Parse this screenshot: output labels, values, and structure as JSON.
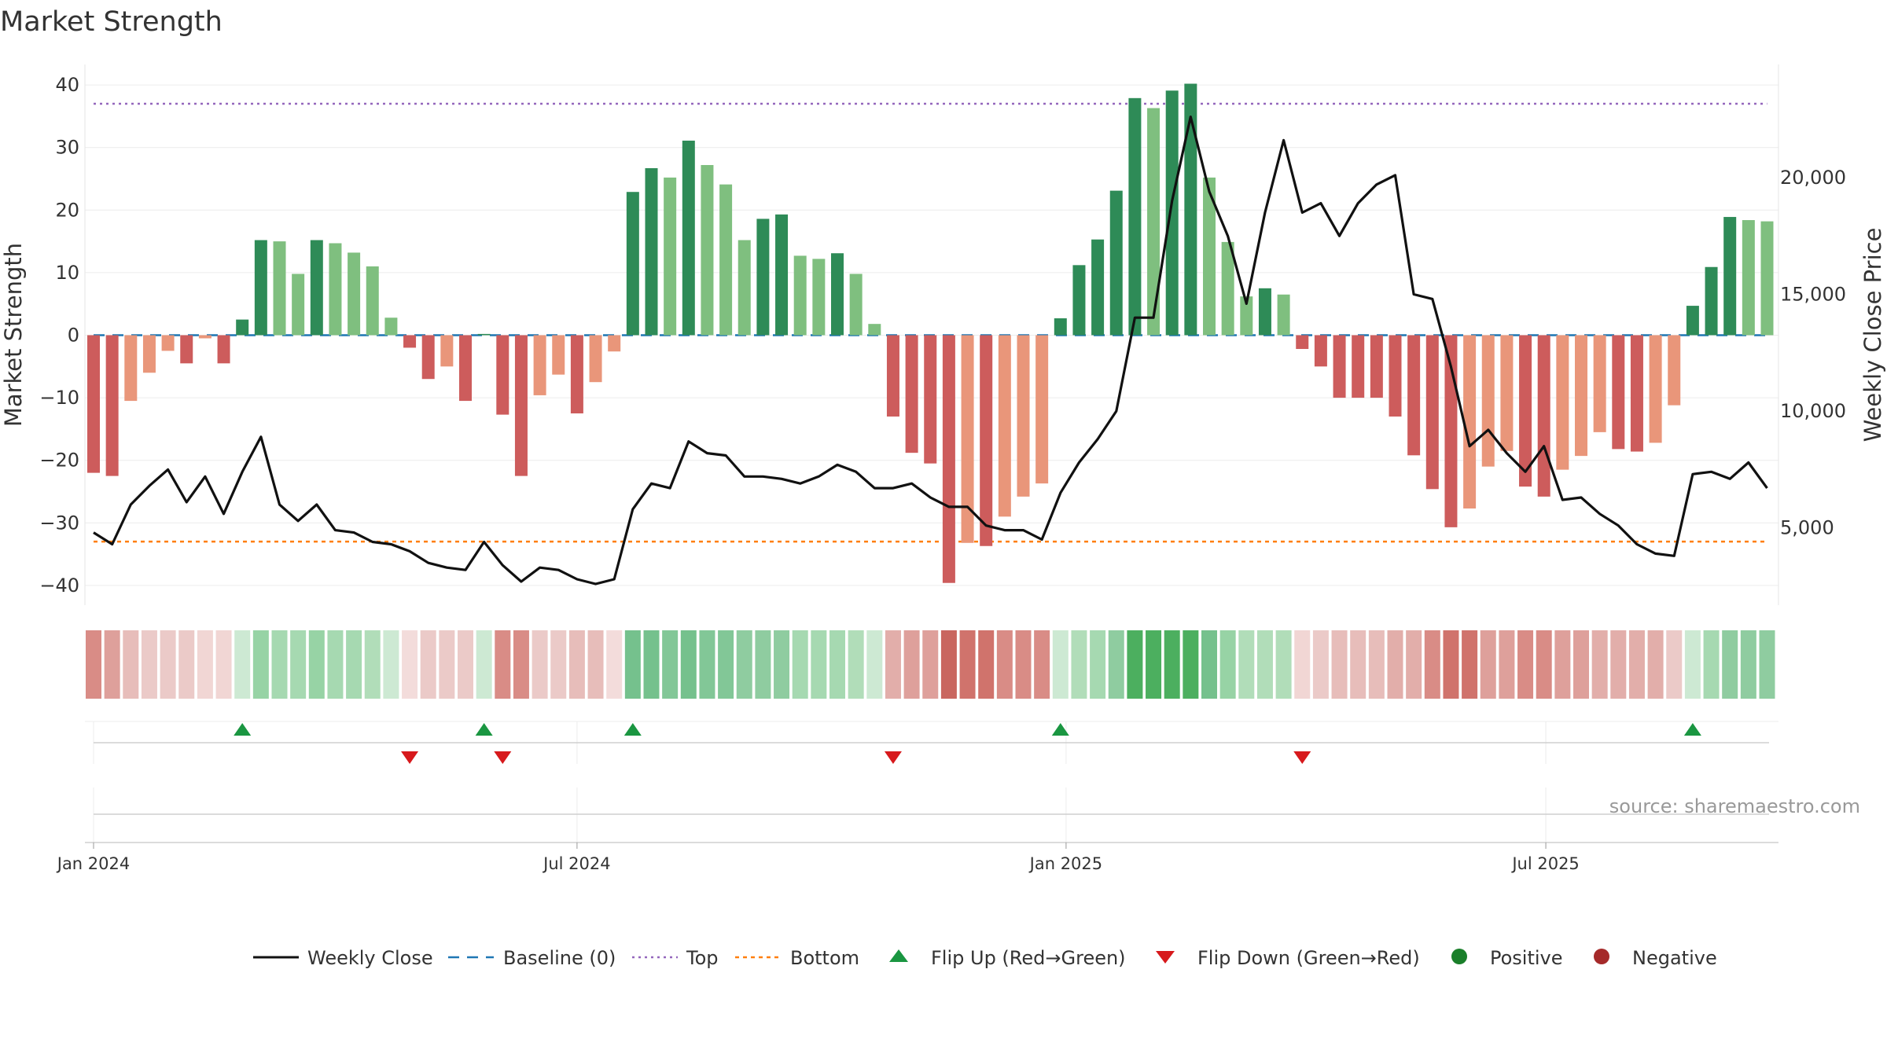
{
  "chart_data": {
    "type": "bar+line",
    "title": "Market Strength",
    "ylabel_left": "Market Strength",
    "ylabel_right": "Weekly Close Price",
    "yticks_left": [
      40,
      30,
      20,
      10,
      0,
      -10,
      -20,
      -30,
      -40
    ],
    "yticks_left_labels": [
      "40",
      "30",
      "20",
      "10",
      "0",
      "−10",
      "−20",
      "−30",
      "−40"
    ],
    "yticks_right": [
      20000,
      15000,
      10000,
      5000
    ],
    "yticks_right_labels": [
      "20,000",
      "15,000",
      "10,000",
      "5,000"
    ],
    "ylim_left": [
      -42,
      42
    ],
    "ylim_right": [
      2000,
      24500
    ],
    "top_line": 37,
    "bottom_line": -33,
    "baseline": 0,
    "x_tick_labels": [
      "Jan 2024",
      "Jul 2024",
      "Jan 2025",
      "Jul 2025"
    ],
    "x_tick_weeks": [
      0,
      26,
      52.3,
      78.1
    ],
    "strength": [
      -22,
      -22.5,
      -10.5,
      -6,
      -2.5,
      -4.5,
      -0.5,
      -4.5,
      2.5,
      15.2,
      15,
      9.8,
      15.2,
      14.7,
      13.2,
      11,
      2.8,
      -2,
      -7,
      -5,
      -10.5,
      0.2,
      -12.7,
      -22.5,
      -9.6,
      -6.3,
      -12.5,
      -7.5,
      -2.6,
      22.9,
      26.7,
      25.2,
      31.1,
      27.2,
      24.1,
      15.2,
      18.6,
      19.3,
      12.7,
      12.2,
      13.1,
      9.8,
      1.8,
      -13,
      -18.8,
      -20.5,
      -39.6,
      -33.2,
      -33.7,
      -29,
      -25.8,
      -23.7,
      2.7,
      11.2,
      15.3,
      23.1,
      37.9,
      36.3,
      39.1,
      40.2,
      25.2,
      14.9,
      6.2,
      7.5,
      6.5,
      -2.2,
      -5,
      -10,
      -10,
      -10,
      -13,
      -19.2,
      -24.6,
      -30.7,
      -27.7,
      -21,
      -18.5,
      -24.2,
      -25.8,
      -21.5,
      -19.3,
      -15.5,
      -18.2,
      -18.6,
      -17.2,
      -11.2,
      4.7,
      10.9,
      18.9,
      18.4,
      18.2
    ],
    "weekly_close": [
      4800,
      4300,
      6000,
      6800,
      7500,
      6100,
      7200,
      5600,
      7400,
      8900,
      6000,
      5300,
      6000,
      4900,
      4800,
      4400,
      4300,
      4000,
      3500,
      3300,
      3200,
      4400,
      3400,
      2700,
      3300,
      3200,
      2800,
      2600,
      2800,
      5800,
      6900,
      6700,
      8700,
      8200,
      8100,
      7200,
      7200,
      7100,
      6900,
      7200,
      7700,
      7400,
      6700,
      6700,
      6900,
      6300,
      5900,
      5900,
      5100,
      4900,
      4900,
      4500,
      6500,
      7800,
      8800,
      10000,
      14000,
      14000,
      19000,
      22600,
      19400,
      17500,
      14600,
      18500,
      21600,
      18500,
      18900,
      17500,
      18900,
      19700,
      20100,
      15000,
      14800,
      11900,
      8500,
      9200,
      8200,
      7400,
      8500,
      6200,
      6300,
      5600,
      5100,
      4300,
      3900,
      3800,
      7300,
      7400,
      7100,
      7800,
      6700
    ],
    "regime_colors": [
      "#d98c86",
      "#dea09b",
      "#e7bdba",
      "#ebcac8",
      "#ebcac8",
      "#ebcac8",
      "#f1d6d4",
      "#f1d6d4",
      "#cde9d3",
      "#97d3a5",
      "#a6d9b1",
      "#a6d9b1",
      "#97d3a5",
      "#a6d9b1",
      "#a6d9b1",
      "#b1ddb9",
      "#cde9d3",
      "#f3dcdb",
      "#ebcac8",
      "#ebcac8",
      "#ebcac8",
      "#cde9d3",
      "#d98c86",
      "#d98c86",
      "#ebcac8",
      "#ebcac8",
      "#e7bdba",
      "#e7bdba",
      "#f3dcdb",
      "#75c18d",
      "#75c18d",
      "#82c797",
      "#75c18d",
      "#82c797",
      "#82c797",
      "#8fcca0",
      "#8fcca0",
      "#8fcca0",
      "#a6d9b1",
      "#a6d9b1",
      "#a6d9b1",
      "#b1ddb9",
      "#cde9d3",
      "#e2aeaa",
      "#dea09b",
      "#dea09b",
      "#c9665f",
      "#d0736c",
      "#d0736c",
      "#d98c86",
      "#d98c86",
      "#d98c86",
      "#cde9d3",
      "#b1ddb9",
      "#a6d9b1",
      "#8fcca0",
      "#4caf5f",
      "#4caf5f",
      "#4caf5f",
      "#4caf5f",
      "#75c18d",
      "#97d3a5",
      "#b1ddb9",
      "#b1ddb9",
      "#b1ddb9",
      "#f1d6d4",
      "#ebcac8",
      "#e7bdba",
      "#e7bdba",
      "#e7bdba",
      "#e2aeaa",
      "#e2aeaa",
      "#d98c86",
      "#d0736c",
      "#d0736c",
      "#dea09b",
      "#dea09b",
      "#d98c86",
      "#d98c86",
      "#dea09b",
      "#dea09b",
      "#e2aeaa",
      "#e2aeaa",
      "#e2aeaa",
      "#e2aeaa",
      "#ebcac8",
      "#cde9d3",
      "#a6d9b1",
      "#8fcca0",
      "#8fcca0",
      "#8fcca0"
    ],
    "flip_up_weeks": [
      8,
      21,
      29,
      52,
      86
    ],
    "flip_down_weeks": [
      17,
      22,
      43,
      65
    ],
    "colors": {
      "pos_dark": "#2e8b57",
      "pos_light": "#7fbf7f",
      "neg_dark": "#cd5c5c",
      "neg_light": "#e9967a",
      "close_line": "#111111",
      "baseline": "#1f77b4",
      "top": "#9467bd",
      "bottom": "#ff7f0e",
      "flip_up": "#1a9641",
      "flip_down": "#d7191c",
      "positive": "#1a7f2a",
      "negative": "#a52a2a"
    },
    "legend": [
      "Weekly Close",
      "Baseline (0)",
      "Top",
      "Bottom",
      "Flip Up (Red→Green)",
      "Flip Down (Green→Red)",
      "Positive",
      "Negative"
    ],
    "source_note": "source: sharemaestro.com"
  }
}
